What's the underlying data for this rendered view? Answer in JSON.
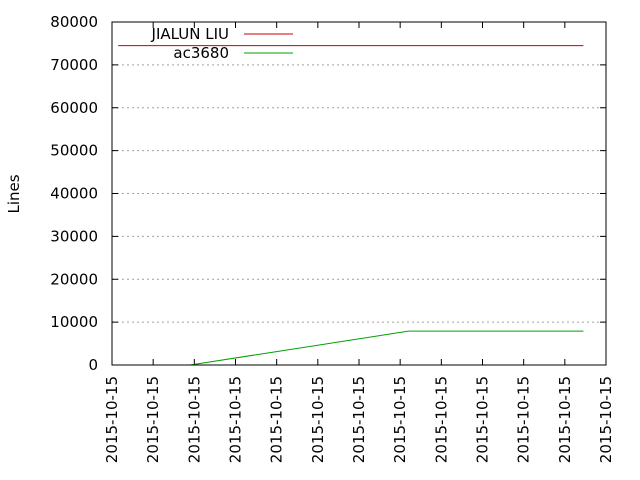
{
  "chart_data": {
    "type": "line",
    "title": "",
    "xlabel": "",
    "ylabel": "Lines",
    "ylim": [
      0,
      80000
    ],
    "y_ticks": [
      0,
      10000,
      20000,
      30000,
      40000,
      50000,
      60000,
      70000,
      80000
    ],
    "x_tick_labels": [
      "2015-10-15",
      "2015-10-15",
      "2015-10-15",
      "2015-10-15",
      "2015-10-15",
      "2015-10-15",
      "2015-10-15",
      "2015-10-15",
      "2015-10-15",
      "2015-10-15",
      "2015-10-15",
      "2015-10-15",
      "2015-10-15"
    ],
    "grid": "y-dashed",
    "legend": "top-left",
    "series": [
      {
        "name": "JIALUN LIU",
        "color": "#cc0000",
        "points": [
          [
            0.15,
            74500
          ],
          [
            11.45,
            74500
          ]
        ]
      },
      {
        "name": "ac3680",
        "color": "#00a000",
        "points": [
          [
            1.9,
            0
          ],
          [
            7.2,
            7900
          ],
          [
            11.45,
            7900
          ]
        ]
      }
    ]
  }
}
